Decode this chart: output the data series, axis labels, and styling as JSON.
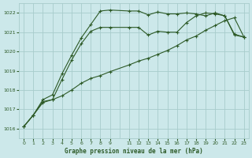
{
  "title": "Graphe pression niveau de la mer (hPa)",
  "bg_color": "#cce8ea",
  "grid_color": "#a8cccc",
  "line_color": "#2d5a27",
  "xlim": [
    -0.5,
    23.5
  ],
  "ylim": [
    1015.5,
    1022.5
  ],
  "yticks": [
    1016,
    1017,
    1018,
    1019,
    1020,
    1021,
    1022
  ],
  "xtick_positions": [
    0,
    1,
    2,
    3,
    4,
    5,
    6,
    7,
    8,
    9,
    11,
    12,
    13,
    14,
    15,
    16,
    17,
    18,
    19,
    20,
    21,
    22,
    23
  ],
  "xtick_labels": [
    "0",
    "1",
    "2",
    "3",
    "4",
    "5",
    "6",
    "7",
    "8",
    "9",
    "11",
    "12",
    "13",
    "14",
    "15",
    "16",
    "17",
    "18",
    "19",
    "20",
    "21",
    "22",
    "23"
  ],
  "series1_x": [
    0,
    1,
    2,
    3,
    4,
    5,
    6,
    7,
    8,
    9,
    11,
    12,
    13,
    14,
    15,
    16,
    17,
    18,
    19,
    20,
    21,
    22,
    23
  ],
  "series1_y": [
    1016.1,
    1016.7,
    1017.4,
    1017.5,
    1018.55,
    1019.55,
    1020.4,
    1021.05,
    1021.25,
    1021.25,
    1021.25,
    1021.25,
    1020.85,
    1021.05,
    1021.0,
    1021.0,
    1021.5,
    1021.85,
    1022.0,
    1021.95,
    1021.85,
    1020.9,
    1020.75
  ],
  "series2_x": [
    0,
    1,
    2,
    3,
    4,
    5,
    6,
    7,
    8,
    9,
    11,
    12,
    13,
    14,
    15,
    16,
    17,
    18,
    19,
    20,
    21,
    22,
    23
  ],
  "series2_y": [
    1016.1,
    1016.7,
    1017.5,
    1017.75,
    1018.85,
    1019.8,
    1020.7,
    1021.4,
    1022.1,
    1022.15,
    1022.1,
    1022.1,
    1021.9,
    1022.05,
    1021.95,
    1021.95,
    1022.0,
    1021.95,
    1021.85,
    1022.0,
    1021.85,
    1020.85,
    1020.75
  ],
  "series3_x": [
    0,
    1,
    2,
    3,
    4,
    5,
    6,
    7,
    8,
    9,
    11,
    12,
    13,
    14,
    15,
    16,
    17,
    18,
    19,
    20,
    21,
    22,
    23
  ],
  "series3_y": [
    1016.1,
    1016.7,
    1017.35,
    1017.5,
    1017.7,
    1018.0,
    1018.35,
    1018.6,
    1018.75,
    1018.95,
    1019.3,
    1019.5,
    1019.65,
    1019.85,
    1020.05,
    1020.3,
    1020.6,
    1020.8,
    1021.1,
    1021.35,
    1021.6,
    1021.75,
    1020.75
  ]
}
